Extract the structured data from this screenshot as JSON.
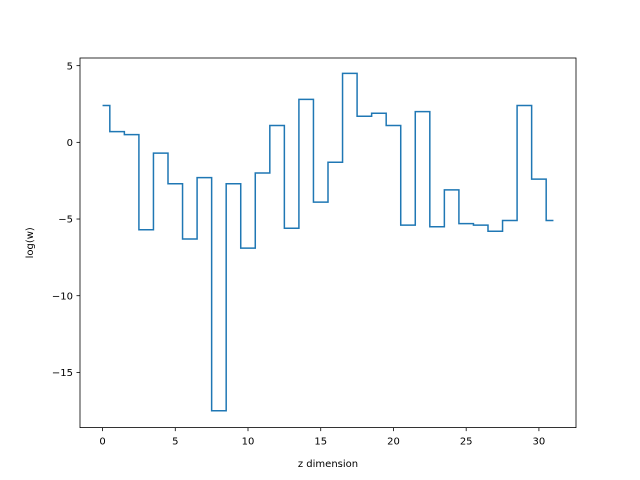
{
  "chart_data": {
    "type": "line",
    "drawstyle": "steps-mid",
    "title": "",
    "xlabel": "z dimension",
    "ylabel": "log(w)",
    "xlim": [
      -1.55,
      32.55
    ],
    "ylim": [
      -18.6,
      5.5
    ],
    "grid": false,
    "legend": "none",
    "x": [
      0,
      1,
      2,
      3,
      4,
      5,
      6,
      7,
      8,
      9,
      10,
      11,
      12,
      13,
      14,
      15,
      16,
      17,
      18,
      19,
      20,
      21,
      22,
      23,
      24,
      25,
      26,
      27,
      28,
      29,
      30,
      31
    ],
    "series": [
      {
        "color": "#1f77b4",
        "values": [
          2.4,
          0.7,
          0.5,
          -5.7,
          -0.7,
          -2.7,
          -6.3,
          -2.3,
          -17.5,
          -2.7,
          -6.9,
          -2.0,
          1.1,
          -5.6,
          2.8,
          -3.9,
          -1.3,
          4.5,
          1.7,
          1.9,
          1.1,
          -5.4,
          2.0,
          -5.5,
          -3.1,
          -5.3,
          -5.4,
          -5.8,
          -5.1,
          2.4,
          -2.4,
          -5.1
        ]
      }
    ],
    "xticks": [
      "0",
      "5",
      "10",
      "15",
      "20",
      "25",
      "30"
    ],
    "xtick_values": [
      0,
      5,
      10,
      15,
      20,
      25,
      30
    ],
    "yticks": [
      "5",
      "0",
      "−5",
      "−10",
      "−15"
    ],
    "ytick_values": [
      5,
      0,
      -5,
      -10,
      -15
    ]
  }
}
